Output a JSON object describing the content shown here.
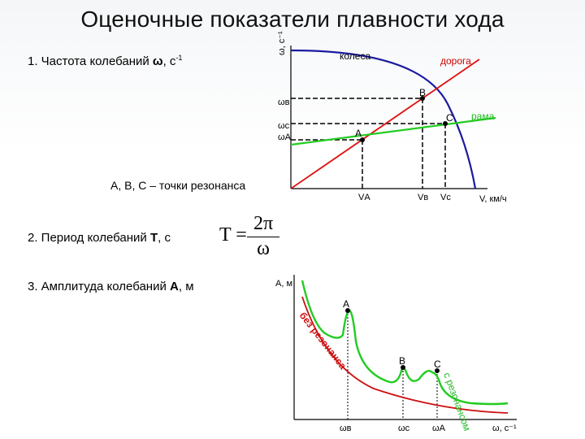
{
  "title": "Оценочные показатели плавности хода",
  "items": {
    "freq": {
      "label": "1. Частота колебаний ",
      "symbol": "ω",
      "unit": ", с",
      "sup": "-1"
    },
    "resonance": "А, В, С – точки резонанса",
    "period": {
      "label": "2. Период колебаний ",
      "symbol": "Т",
      "unit": ", с"
    },
    "amplitude": {
      "label": "3. Амплитуда колебаний ",
      "symbol": "А",
      "unit": ", м"
    }
  },
  "formula": {
    "lhs": "T =",
    "numerator": "2π",
    "denominator": "ω"
  },
  "graph1": {
    "y_axis_label": "ω, с⁻¹",
    "x_axis_label": "V, км/ч",
    "curve_labels": {
      "wheels": "колеса",
      "road": "дорога",
      "frame": "рама"
    },
    "point_labels": {
      "B": "B",
      "C": "C",
      "A": "A"
    },
    "y_ticks": {
      "wB": "ωв",
      "wC": "ωс",
      "wA": "ωА"
    },
    "x_ticks": {
      "VA": "VА",
      "VB": "Vв",
      "VC": "Vс"
    },
    "colors": {
      "wheels": "#1a1aa0",
      "road": "#e01010",
      "frame": "#22cc22"
    }
  },
  "graph2": {
    "y_axis_label": "А, м",
    "x_axis_label": "ω, с⁻¹",
    "curve_labels": {
      "no_resonance": "без резонанса",
      "with_resonance": "с резонансом"
    },
    "point_labels": {
      "A": "A",
      "B": "B",
      "C": "C"
    },
    "x_ticks": {
      "wB": "ωв",
      "wC": "ωс",
      "wA": "ωА"
    },
    "colors": {
      "no_resonance": "#cc1010",
      "with_resonance": "#22cc22"
    }
  }
}
